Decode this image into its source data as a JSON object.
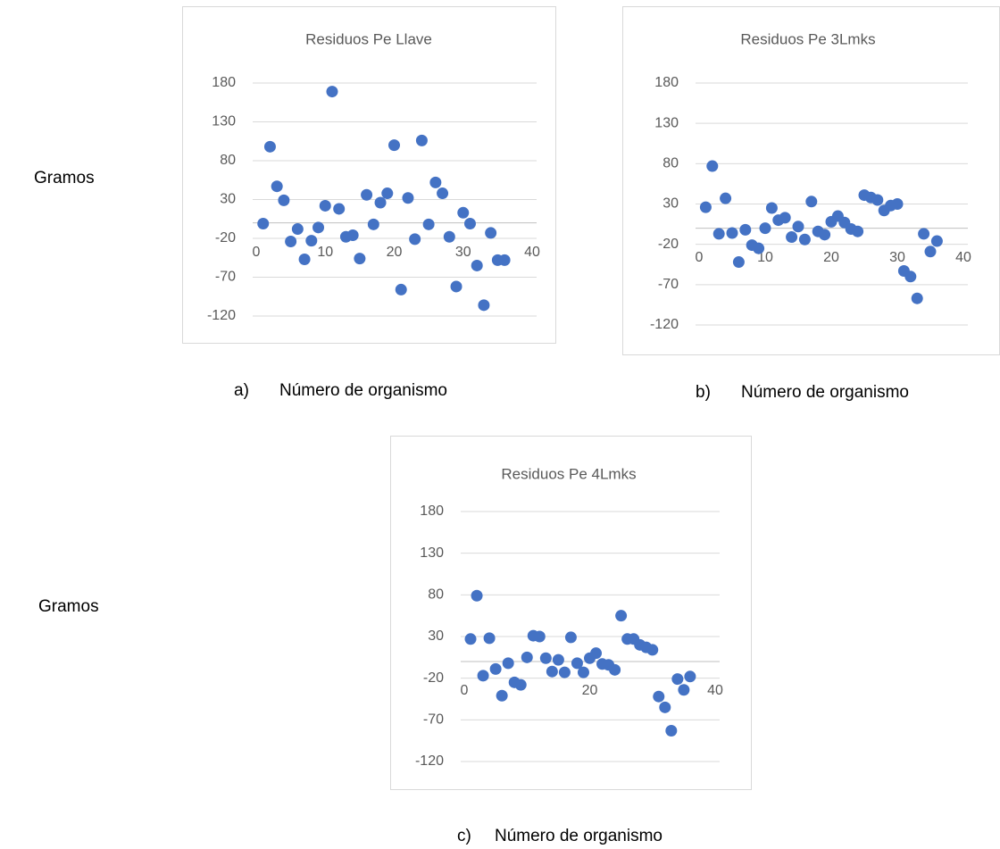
{
  "chart_data": [
    {
      "type": "scatter",
      "title": "Residuos Pe Llave",
      "label": "a)",
      "x_label": "Número de organismo",
      "y_label": "Gramos",
      "x": [
        1,
        2,
        3,
        4,
        5,
        6,
        7,
        8,
        9,
        10,
        11,
        12,
        13,
        14,
        15,
        16,
        17,
        18,
        19,
        20,
        21,
        22,
        23,
        24,
        25,
        26,
        27,
        28,
        29,
        30,
        31,
        32,
        33,
        34,
        35,
        36
      ],
      "values": [
        -1,
        98,
        47,
        29,
        -24,
        -8,
        -47,
        -23,
        -6,
        22,
        169,
        18,
        -18,
        -16,
        -46,
        36,
        -2,
        26,
        38,
        100,
        -86,
        32,
        -21,
        106,
        -2,
        52,
        38,
        -18,
        -82,
        13,
        -1,
        -55,
        -106,
        -13,
        -48,
        -48
      ],
      "color": "#4472c4",
      "xlim": [
        0,
        40
      ],
      "ylim": [
        -120,
        180
      ],
      "xticks": [
        0,
        10,
        20,
        30,
        40
      ],
      "yticks": [
        -120,
        -70,
        -20,
        30,
        80,
        130,
        180
      ],
      "grid": true
    },
    {
      "type": "scatter",
      "title": "Residuos Pe 3Lmks",
      "label": "b)",
      "x_label": "Número de organismo",
      "x": [
        1,
        2,
        3,
        4,
        5,
        6,
        7,
        8,
        9,
        10,
        11,
        12,
        13,
        14,
        15,
        16,
        17,
        18,
        19,
        20,
        21,
        22,
        23,
        24,
        25,
        26,
        27,
        28,
        29,
        30,
        31,
        32,
        33,
        34,
        35,
        36
      ],
      "values": [
        26,
        77,
        -7,
        37,
        -6,
        -42,
        -2,
        -21,
        -25,
        0,
        25,
        10,
        13,
        -11,
        2,
        -14,
        33,
        -4,
        -8,
        8,
        15,
        7,
        -1,
        -4,
        41,
        38,
        35,
        22,
        28,
        30,
        -53,
        -60,
        -87,
        -7,
        -29,
        -16
      ],
      "color": "#4472c4",
      "xlim": [
        0,
        40
      ],
      "ylim": [
        -120,
        180
      ],
      "xticks": [
        0,
        10,
        20,
        30,
        40
      ],
      "yticks": [
        -120,
        -70,
        -20,
        30,
        80,
        130,
        180
      ],
      "grid": true
    },
    {
      "type": "scatter",
      "title": "Residuos Pe 4Lmks",
      "label": "c)",
      "x_label": "Número de organismo",
      "y_label": "Gramos",
      "x": [
        1,
        2,
        3,
        4,
        5,
        6,
        7,
        8,
        9,
        10,
        11,
        12,
        13,
        14,
        15,
        16,
        17,
        18,
        19,
        20,
        21,
        22,
        23,
        24,
        25,
        26,
        27,
        28,
        29,
        30,
        31,
        32,
        33,
        34,
        35,
        36
      ],
      "values": [
        27,
        79,
        -17,
        28,
        -9,
        -41,
        -2,
        -25,
        -28,
        5,
        31,
        30,
        4,
        -12,
        2,
        -13,
        29,
        -2,
        -13,
        4,
        10,
        -3,
        -4,
        -10,
        55,
        27,
        27,
        20,
        17,
        14,
        -42,
        -55,
        -83,
        -21,
        -34,
        -18
      ],
      "color": "#4472c4",
      "xlim": [
        0,
        40
      ],
      "ylim": [
        -120,
        180
      ],
      "xticks": [
        0,
        20,
        40
      ],
      "yticks": [
        -120,
        -70,
        -20,
        30,
        80,
        130,
        180
      ],
      "grid": true
    }
  ]
}
